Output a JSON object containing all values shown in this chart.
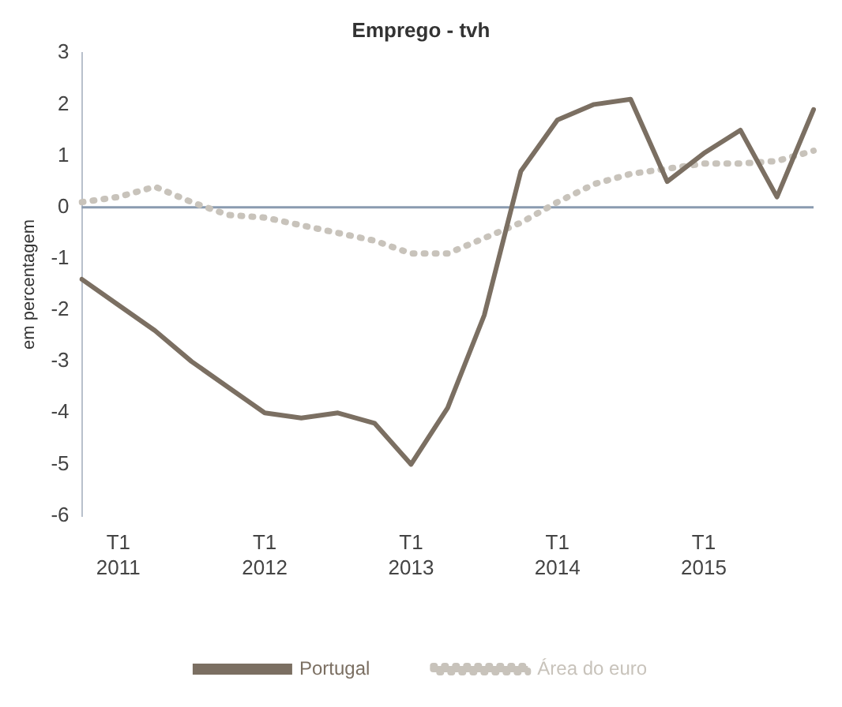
{
  "chart_data": {
    "type": "line",
    "title": "Emprego - tvh",
    "ylabel": "em percentagem",
    "categories": [
      null,
      "T1 2011",
      null,
      null,
      null,
      "T1 2012",
      null,
      null,
      null,
      "T1 2013",
      null,
      null,
      null,
      "T1 2014",
      null,
      null,
      null,
      "T1 2015",
      null,
      null,
      null
    ],
    "series": [
      {
        "name": "Portugal",
        "color": "#7b6f62",
        "line_style": "solid",
        "values": [
          -1.4,
          -1.9,
          -2.4,
          -3.0,
          -3.5,
          -4.0,
          -4.1,
          -4.0,
          -4.2,
          -5.0,
          -3.9,
          -2.1,
          0.7,
          1.7,
          2.0,
          2.1,
          0.5,
          1.05,
          1.5,
          0.2,
          1.9
        ]
      },
      {
        "name": "Área do euro",
        "color": "#c8c3bb",
        "line_style": "dotted",
        "values": [
          0.1,
          0.2,
          0.4,
          0.1,
          -0.15,
          -0.2,
          -0.35,
          -0.5,
          -0.65,
          -0.9,
          -0.9,
          -0.6,
          -0.3,
          0.1,
          0.45,
          0.65,
          0.75,
          0.85,
          0.85,
          0.9,
          1.1
        ]
      }
    ],
    "ylim": [
      -6,
      3
    ],
    "yticks": [
      -6,
      -5,
      -4,
      -3,
      -2,
      -1,
      0,
      1,
      2,
      3
    ],
    "ref_lines": [
      {
        "axis": "y",
        "value": 0,
        "color": "#8a9bb0"
      }
    ],
    "grid": false,
    "legend": "bottom",
    "marker": "none"
  }
}
